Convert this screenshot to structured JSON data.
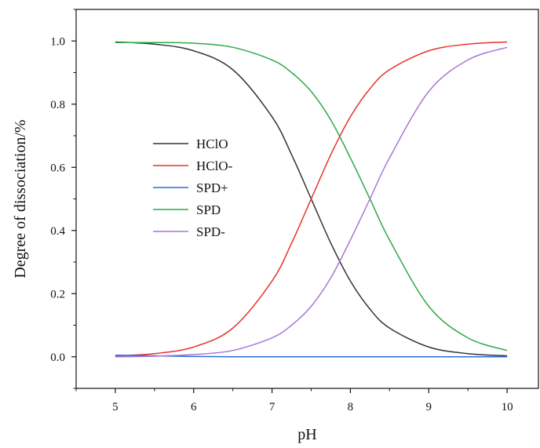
{
  "chart_data": {
    "type": "line",
    "title": "",
    "xlabel": "pH",
    "ylabel": "Degree of dissociation/%",
    "xlim": [
      4.5,
      10.4
    ],
    "ylim": [
      -0.1,
      1.1
    ],
    "xticks": [
      5,
      6,
      7,
      8,
      9,
      10
    ],
    "yticks": [
      0.0,
      0.2,
      0.4,
      0.6,
      0.8,
      1.0
    ],
    "xtick_labels": [
      "5",
      "6",
      "7",
      "8",
      "9",
      "10"
    ],
    "ytick_labels": [
      "0.0",
      "0.2",
      "0.4",
      "0.6",
      "0.8",
      "1.0"
    ],
    "grid": false,
    "legend_position": "center-left",
    "x": [
      5.0,
      5.5,
      6.0,
      6.5,
      7.0,
      7.25,
      7.5,
      7.75,
      8.0,
      8.25,
      8.5,
      9.0,
      9.5,
      10.0
    ],
    "series": [
      {
        "name": "HClO",
        "color": "#333333",
        "values": [
          0.997,
          0.99,
          0.969,
          0.909,
          0.76,
          0.64,
          0.5,
          0.36,
          0.24,
          0.151,
          0.091,
          0.031,
          0.01,
          0.003
        ]
      },
      {
        "name": "HClO-",
        "color": "#e8332a",
        "values": [
          0.003,
          0.01,
          0.031,
          0.091,
          0.24,
          0.36,
          0.5,
          0.64,
          0.76,
          0.849,
          0.909,
          0.969,
          0.99,
          0.997
        ]
      },
      {
        "name": "SPD+",
        "color": "#2a6fd6",
        "values": [
          0.005,
          0.003,
          0.001,
          0.0,
          0.0,
          0.0,
          0.0,
          0.0,
          0.0,
          0.0,
          0.0,
          0.0,
          0.0,
          0.0
        ]
      },
      {
        "name": "SPD",
        "color": "#2ea84a",
        "values": [
          0.995,
          0.995,
          0.993,
          0.98,
          0.94,
          0.9,
          0.84,
          0.75,
          0.63,
          0.5,
          0.37,
          0.16,
          0.06,
          0.02
        ]
      },
      {
        "name": "SPD-",
        "color": "#a776d8",
        "values": [
          0.0,
          0.002,
          0.007,
          0.02,
          0.06,
          0.1,
          0.16,
          0.25,
          0.37,
          0.5,
          0.63,
          0.84,
          0.94,
          0.98
        ]
      }
    ]
  }
}
